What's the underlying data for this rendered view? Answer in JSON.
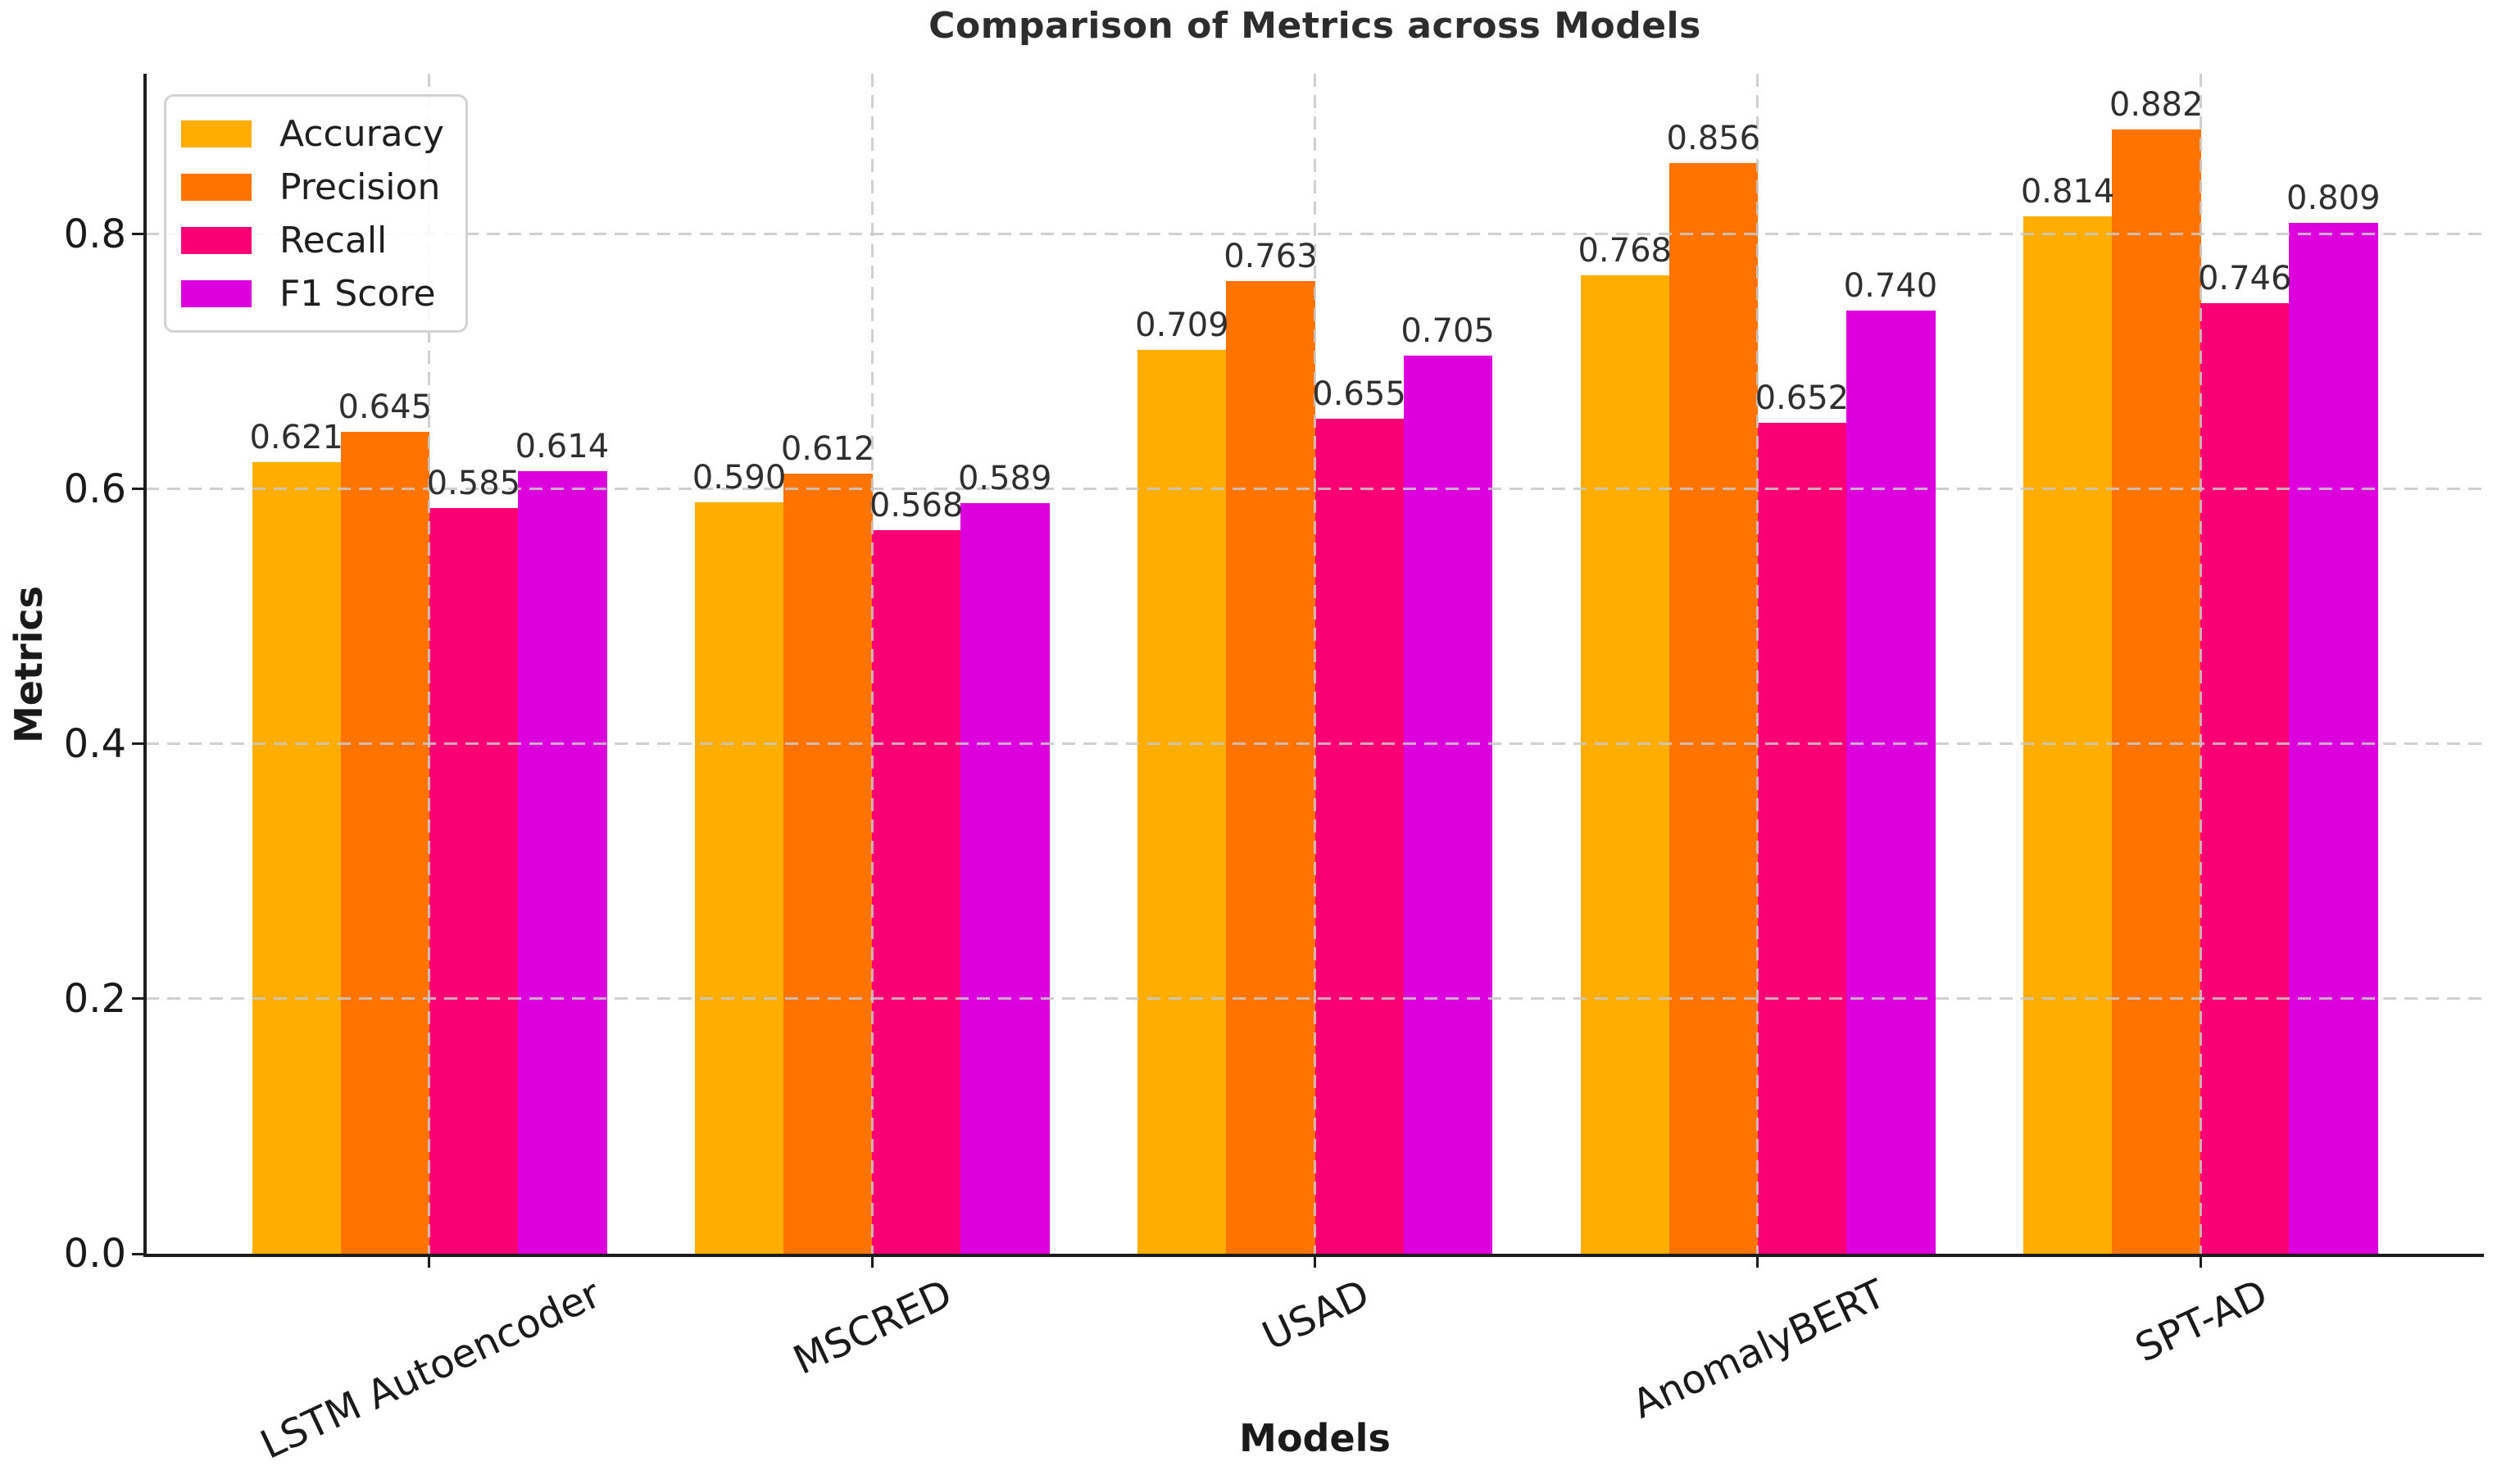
{
  "title": "Comparison of Metrics across Models",
  "axes": {
    "xlabel": "Models",
    "ylabel": "Metrics"
  },
  "chart_data": {
    "type": "bar",
    "title": "Comparison of Metrics across Models",
    "xlabel": "Models",
    "ylabel": "Metrics",
    "categories": [
      "LSTM Autoencoder",
      "MSCRED",
      "USAD",
      "AnomalyBERT",
      "SPT-AD"
    ],
    "series": [
      {
        "name": "Accuracy",
        "color": "#FFAE00",
        "values": [
          0.621,
          0.59,
          0.709,
          0.768,
          0.814
        ]
      },
      {
        "name": "Precision",
        "color": "#FF7400",
        "values": [
          0.645,
          0.612,
          0.763,
          0.856,
          0.882
        ]
      },
      {
        "name": "Recall",
        "color": "#FB0074",
        "values": [
          0.585,
          0.568,
          0.655,
          0.652,
          0.746
        ]
      },
      {
        "name": "F1 Score",
        "color": "#DC00DC",
        "values": [
          0.614,
          0.589,
          0.705,
          0.74,
          0.809
        ]
      }
    ],
    "yticks": [
      0.0,
      0.2,
      0.4,
      0.6,
      0.8
    ],
    "ylim": [
      0.0,
      0.926
    ],
    "grid": true,
    "grid_style": "dashed",
    "legend_position": "upper left",
    "bar_value_labels": true,
    "value_label_decimals": 3,
    "xtick_rotation_deg": 25
  },
  "colors": {
    "background": "#ffffff",
    "axis": "#1c1c1c",
    "grid": "#c8c8c8",
    "title_text": "#2d2d2d",
    "tick_text": "#1a1a1a",
    "value_text": "#2f2f2f",
    "legend_border": "#d2d2d2"
  }
}
